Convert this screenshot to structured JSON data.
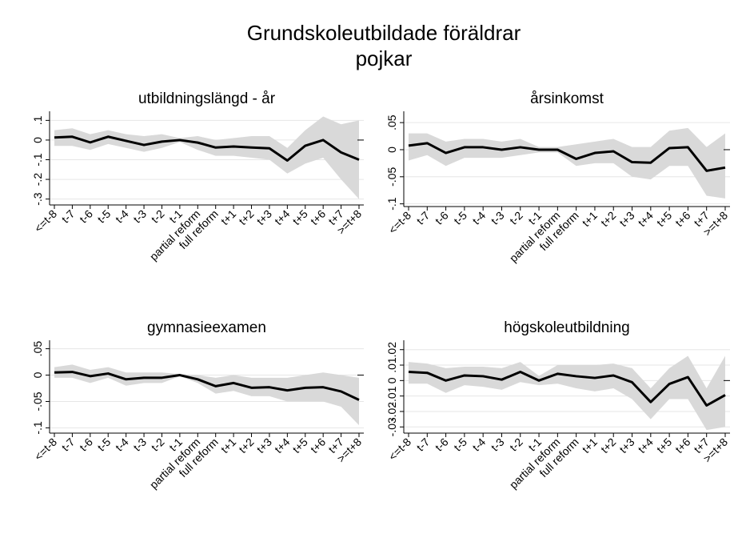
{
  "title": "Grundskoleutbildade föräldrar",
  "subtitle": "pojkar",
  "chart_data": [
    {
      "type": "line",
      "title": "utbildningslängd - år",
      "categories": [
        "<=t-8",
        "t-7",
        "t-6",
        "t-5",
        "t-4",
        "t-3",
        "t-2",
        "t-1",
        "partial reform",
        "full reform",
        "t+1",
        "t+2",
        "t+3",
        "t+4",
        "t+5",
        "t+6",
        "t+7",
        ">=t+8"
      ],
      "values": [
        0.013,
        0.017,
        -0.012,
        0.017,
        -0.004,
        -0.025,
        -0.008,
        0,
        -0.013,
        -0.038,
        -0.033,
        -0.038,
        -0.042,
        -0.104,
        -0.029,
        0,
        -0.063,
        -0.1
      ],
      "ci_upper": [
        0.05,
        0.06,
        0.03,
        0.05,
        0.03,
        0.02,
        0.03,
        0.01,
        0.02,
        0.0,
        0.01,
        0.02,
        0.02,
        -0.04,
        0.05,
        0.12,
        0.08,
        0.1
      ],
      "ci_lower": [
        -0.03,
        -0.03,
        -0.05,
        -0.02,
        -0.04,
        -0.06,
        -0.04,
        -0.01,
        -0.05,
        -0.08,
        -0.08,
        -0.09,
        -0.1,
        -0.17,
        -0.12,
        -0.09,
        -0.2,
        -0.3
      ],
      "color": "#000000",
      "band_color": "#d9d9d9",
      "ylim": [
        -0.33,
        0.13
      ],
      "yticks": [
        {
          "value": -0.3,
          "label": "-.3"
        },
        {
          "value": -0.2,
          "label": "-.2"
        },
        {
          "value": -0.1,
          "label": "-.1"
        },
        0,
        {
          "value": 0.1,
          "label": ".1"
        }
      ],
      "grid": true
    },
    {
      "type": "line",
      "title": "årsinkomst",
      "categories": [
        "<=t-8",
        "t-7",
        "t-6",
        "t-5",
        "t-4",
        "t-3",
        "t-2",
        "t-1",
        "partial reform",
        "full reform",
        "t+1",
        "t+2",
        "t+3",
        "t+4",
        "t+5",
        "t+6",
        "t+7",
        ">=t+8"
      ],
      "values": [
        0.0076,
        0.012,
        -0.006,
        0.0045,
        0.0045,
        0,
        0.0045,
        0,
        0,
        -0.017,
        -0.006,
        -0.003,
        -0.023,
        -0.024,
        0.003,
        0.0045,
        -0.039,
        -0.033
      ],
      "ci_upper": [
        0.03,
        0.03,
        0.015,
        0.02,
        0.02,
        0.015,
        0.02,
        0.005,
        0.005,
        0.01,
        0.015,
        0.02,
        0.005,
        0.005,
        0.035,
        0.04,
        0.005,
        0.03
      ],
      "ci_lower": [
        -0.02,
        -0.01,
        -0.03,
        -0.015,
        -0.015,
        -0.015,
        -0.01,
        -0.005,
        -0.005,
        -0.03,
        -0.025,
        -0.025,
        -0.05,
        -0.055,
        -0.03,
        -0.03,
        -0.085,
        -0.09
      ],
      "color": "#000000",
      "band_color": "#d9d9d9",
      "ylim": [
        -0.105,
        0.065
      ],
      "yticks": [
        {
          "value": -0.1,
          "label": "-.1"
        },
        {
          "value": -0.05,
          "label": "-.05"
        },
        0,
        {
          "value": 0.05,
          "label": ".05"
        }
      ],
      "grid": true
    },
    {
      "type": "line",
      "title": "gymnasieexamen",
      "categories": [
        "<=t-8",
        "t-7",
        "t-6",
        "t-5",
        "t-4",
        "t-3",
        "t-2",
        "t-1",
        "partial reform",
        "full reform",
        "t+1",
        "t+2",
        "t+3",
        "t+4",
        "t+5",
        "t+6",
        "t+7",
        ">=t+8"
      ],
      "values": [
        0.005,
        0.006,
        -0.002,
        0.003,
        -0.008,
        -0.005,
        -0.005,
        0,
        -0.008,
        -0.021,
        -0.015,
        -0.024,
        -0.023,
        -0.029,
        -0.024,
        -0.023,
        -0.031,
        -0.047
      ],
      "ci_upper": [
        0.015,
        0.02,
        0.01,
        0.015,
        0.005,
        0.005,
        0.005,
        0.002,
        0,
        -0.005,
        0,
        -0.005,
        -0.005,
        -0.005,
        0,
        0.005,
        0,
        -0.005
      ],
      "ci_lower": [
        -0.005,
        -0.005,
        -0.015,
        -0.005,
        -0.02,
        -0.015,
        -0.015,
        -0.002,
        -0.015,
        -0.035,
        -0.03,
        -0.04,
        -0.04,
        -0.05,
        -0.05,
        -0.05,
        -0.06,
        -0.095
      ],
      "color": "#000000",
      "band_color": "#d9d9d9",
      "ylim": [
        -0.11,
        0.06
      ],
      "yticks": [
        {
          "value": -0.1,
          "label": "-.1"
        },
        {
          "value": -0.05,
          "label": "-.05"
        },
        0,
        {
          "value": 0.05,
          "label": ".05"
        }
      ],
      "grid": true
    },
    {
      "type": "line",
      "title": "högskoleutbildning",
      "categories": [
        "<=t-8",
        "t-7",
        "t-6",
        "t-5",
        "t-4",
        "t-3",
        "t-2",
        "t-1",
        "partial reform",
        "full reform",
        "t+1",
        "t+2",
        "t+3",
        "t+4",
        "t+5",
        "t+6",
        "t+7",
        ">=t+8"
      ],
      "values": [
        0.0056,
        0.005,
        0,
        0.0033,
        0.0028,
        0.0006,
        0.0056,
        0,
        0.0044,
        0.0028,
        0.0017,
        0.0033,
        -0.0011,
        -0.0139,
        -0.0022,
        0.0022,
        -0.0161,
        -0.0094
      ],
      "ci_upper": [
        0.012,
        0.011,
        0.008,
        0.009,
        0.009,
        0.008,
        0.012,
        0.003,
        0.01,
        0.01,
        0.01,
        0.011,
        0.008,
        -0.005,
        0.008,
        0.016,
        -0.005,
        0.016
      ],
      "ci_lower": [
        -0.002,
        -0.002,
        -0.008,
        -0.003,
        -0.004,
        -0.006,
        -0.001,
        -0.003,
        -0.002,
        -0.005,
        -0.007,
        -0.005,
        -0.012,
        -0.025,
        -0.012,
        -0.012,
        -0.032,
        -0.03
      ],
      "color": "#000000",
      "band_color": "#d9d9d9",
      "ylim": [
        -0.034,
        0.024
      ],
      "yticks": [
        {
          "value": -0.03,
          "label": "-.03"
        },
        {
          "value": -0.02,
          "label": "-.02"
        },
        {
          "value": -0.01,
          "label": "-.01"
        },
        0,
        {
          "value": 0.01,
          "label": ".01"
        },
        {
          "value": 0.02,
          "label": ".02"
        }
      ],
      "grid": true
    }
  ]
}
